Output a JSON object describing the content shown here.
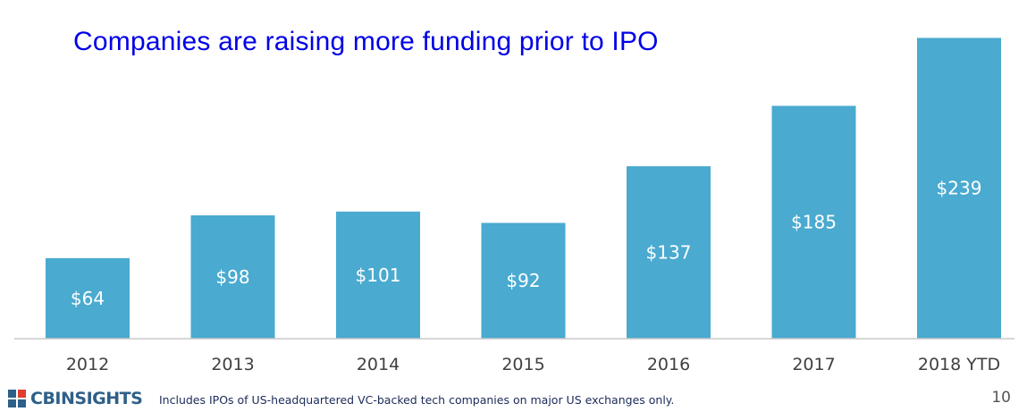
{
  "chart_data": {
    "type": "bar",
    "title": "Companies are raising more funding prior to IPO",
    "categories": [
      "2012",
      "2013",
      "2014",
      "2015",
      "2016",
      "2017",
      "2018 YTD"
    ],
    "values": [
      64,
      98,
      101,
      92,
      137,
      185,
      239
    ],
    "value_labels": [
      "$64",
      "$98",
      "$101",
      "$92",
      "$137",
      "$185",
      "$239"
    ],
    "ylim": [
      0,
      240
    ],
    "grid": false,
    "legend": "none",
    "bar_color": "#4aaad0",
    "label_color": "#ffffff"
  },
  "footer": {
    "logo_text": "CBINSIGHTS",
    "footnote": "Includes IPOs of US-headquartered VC-backed tech companies on major US exchanges only.",
    "page_number": "10"
  },
  "colors": {
    "title": "#0000e6",
    "axis": "#c8c8c8",
    "tick_text": "#404040",
    "logo_dark": "#2e5f88",
    "logo_red": "#e03c31"
  },
  "icons": {
    "logo": "cb-insights-logo-icon"
  }
}
